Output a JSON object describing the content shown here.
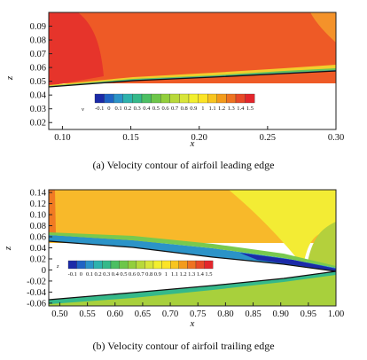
{
  "colorbar": {
    "label_a": "v",
    "label_b": "z",
    "levels": [
      "-0.1",
      "0",
      "0.1",
      "0.2",
      "0.3",
      "0.4",
      "0.5",
      "0.6",
      "0.7",
      "0.8",
      "0.9",
      "1",
      "1.1",
      "1.2",
      "1.3",
      "1.4",
      "1.5"
    ],
    "colors": [
      "#1b2aa8",
      "#1f63c4",
      "#2b93c8",
      "#2eb2ad",
      "#35b98a",
      "#4cbf63",
      "#6dc64a",
      "#92cf3c",
      "#b8d93a",
      "#d8e53a",
      "#f2ef2f",
      "#fce426",
      "#f8c51f",
      "#f39b1c",
      "#ee7322",
      "#e84a28",
      "#e3262c"
    ]
  },
  "chart_data": [
    {
      "type": "heatmap",
      "title": "",
      "caption": "(a)  Velocity contour of airfoil leading edge",
      "xlabel": "x",
      "ylabel": "z",
      "xlim": [
        0.09,
        0.3
      ],
      "ylim": [
        0.015,
        0.1
      ],
      "xticks": [
        "0.10",
        "0.15",
        "0.20",
        "0.25",
        "0.30"
      ],
      "yticks": [
        "0.02",
        "0.03",
        "0.04",
        "0.05",
        "0.06",
        "0.07",
        "0.08",
        "0.09"
      ],
      "field": "velocity",
      "colorbar_levels": [
        -0.1,
        0,
        0.1,
        0.2,
        0.3,
        0.4,
        0.5,
        0.6,
        0.7,
        0.8,
        0.9,
        1.0,
        1.1,
        1.2,
        1.3,
        1.4,
        1.5
      ],
      "airfoil_upper_surface": [
        [
          0.09,
          0.047
        ],
        [
          0.12,
          0.052
        ],
        [
          0.15,
          0.055
        ],
        [
          0.2,
          0.058
        ],
        [
          0.25,
          0.06
        ],
        [
          0.3,
          0.062
        ]
      ]
    },
    {
      "type": "heatmap",
      "title": "",
      "caption": "(b)  Velocity contour of airfoil trailing edge",
      "xlabel": "x",
      "ylabel": "z",
      "xlim": [
        0.48,
        1.0
      ],
      "ylim": [
        -0.065,
        0.145
      ],
      "xticks": [
        "0.50",
        "0.55",
        "0.60",
        "0.65",
        "0.70",
        "0.75",
        "0.80",
        "0.85",
        "0.90",
        "0.95",
        "1.00"
      ],
      "yticks": [
        "-0.06",
        "-0.04",
        "-0.02",
        "0",
        "0.02",
        "0.04",
        "0.06",
        "0.08",
        "0.10",
        "0.12",
        "0.14"
      ],
      "field": "velocity",
      "colorbar_levels": [
        -0.1,
        0,
        0.1,
        0.2,
        0.3,
        0.4,
        0.5,
        0.6,
        0.7,
        0.8,
        0.9,
        1.0,
        1.1,
        1.2,
        1.3,
        1.4,
        1.5
      ],
      "airfoil_upper_surface": [
        [
          0.48,
          0.058
        ],
        [
          0.6,
          0.05
        ],
        [
          0.7,
          0.041
        ],
        [
          0.8,
          0.031
        ],
        [
          0.9,
          0.019
        ],
        [
          1.0,
          0.003
        ]
      ],
      "airfoil_lower_surface": [
        [
          0.48,
          -0.054
        ],
        [
          0.6,
          -0.045
        ],
        [
          0.7,
          -0.036
        ],
        [
          0.8,
          -0.026
        ],
        [
          0.9,
          -0.016
        ],
        [
          1.0,
          -0.003
        ]
      ]
    }
  ]
}
